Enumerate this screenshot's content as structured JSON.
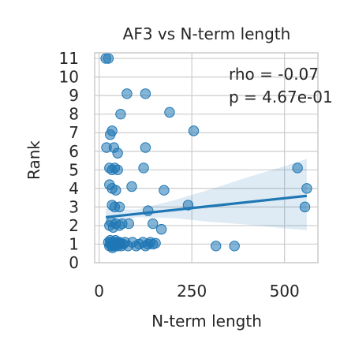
{
  "chart_data": {
    "type": "scatter",
    "title": "AF3 vs N-term length",
    "xlabel": "N-term length",
    "ylabel": "Rank",
    "xlim": [
      -12,
      590
    ],
    "ylim": [
      0,
      11.3
    ],
    "xticks": [
      0,
      250,
      500
    ],
    "yticks": [
      0,
      1,
      2,
      3,
      4,
      5,
      6,
      7,
      8,
      9,
      10,
      11
    ],
    "grid": true,
    "marker_color": "#1f77b4",
    "annotations": [
      "rho = -0.07",
      "p = 4.67e-01"
    ],
    "points": [
      [
        18,
        11
      ],
      [
        25,
        11
      ],
      [
        75,
        9.1
      ],
      [
        125,
        9.1
      ],
      [
        190,
        8.1
      ],
      [
        58,
        8
      ],
      [
        30,
        6.9
      ],
      [
        35,
        7.1
      ],
      [
        255,
        7.1
      ],
      [
        20,
        6.2
      ],
      [
        40,
        6.2
      ],
      [
        50,
        5.9
      ],
      [
        125,
        6.2
      ],
      [
        28,
        5.1
      ],
      [
        35,
        5
      ],
      [
        42,
        5.1
      ],
      [
        50,
        5
      ],
      [
        120,
        5.1
      ],
      [
        535,
        5.1
      ],
      [
        28,
        4.2
      ],
      [
        35,
        4
      ],
      [
        45,
        3.9
      ],
      [
        88,
        4.1
      ],
      [
        175,
        3.9
      ],
      [
        560,
        4
      ],
      [
        35,
        3.1
      ],
      [
        42,
        3
      ],
      [
        55,
        3
      ],
      [
        132,
        2.8
      ],
      [
        240,
        3.1
      ],
      [
        555,
        3
      ],
      [
        28,
        2
      ],
      [
        33,
        2.2
      ],
      [
        38,
        1.9
      ],
      [
        45,
        2.1
      ],
      [
        55,
        2
      ],
      [
        62,
        2.1
      ],
      [
        80,
        2.1
      ],
      [
        145,
        2.1
      ],
      [
        168,
        1.8
      ],
      [
        25,
        1.1
      ],
      [
        28,
        0.9
      ],
      [
        30,
        1
      ],
      [
        32,
        1.1
      ],
      [
        35,
        0.9
      ],
      [
        38,
        1
      ],
      [
        40,
        1.1
      ],
      [
        42,
        0.9
      ],
      [
        45,
        1
      ],
      [
        48,
        1.1
      ],
      [
        50,
        0.9
      ],
      [
        52,
        1
      ],
      [
        55,
        1.1
      ],
      [
        60,
        0.9
      ],
      [
        65,
        1
      ],
      [
        70,
        1.1
      ],
      [
        78,
        0.9
      ],
      [
        90,
        1.1
      ],
      [
        100,
        0.9
      ],
      [
        108,
        1
      ],
      [
        118,
        1.1
      ],
      [
        125,
        0.9
      ],
      [
        132,
        1
      ],
      [
        138,
        1.1
      ],
      [
        145,
        1
      ],
      [
        152,
        1.05
      ],
      [
        315,
        0.9
      ],
      [
        365,
        0.9
      ],
      [
        30,
        1.2
      ],
      [
        36,
        0.8
      ],
      [
        44,
        1.2
      ],
      [
        58,
        1.05
      ]
    ],
    "regression": {
      "x": [
        18,
        560
      ],
      "y": [
        2.45,
        3.6
      ]
    },
    "confidence_band": {
      "x": [
        18,
        100,
        200,
        300,
        400,
        500,
        560
      ],
      "lower": [
        2.0,
        2.45,
        2.4,
        2.2,
        2.05,
        1.85,
        1.75
      ],
      "upper": [
        2.9,
        2.85,
        3.35,
        3.95,
        4.6,
        5.2,
        5.6
      ]
    }
  }
}
